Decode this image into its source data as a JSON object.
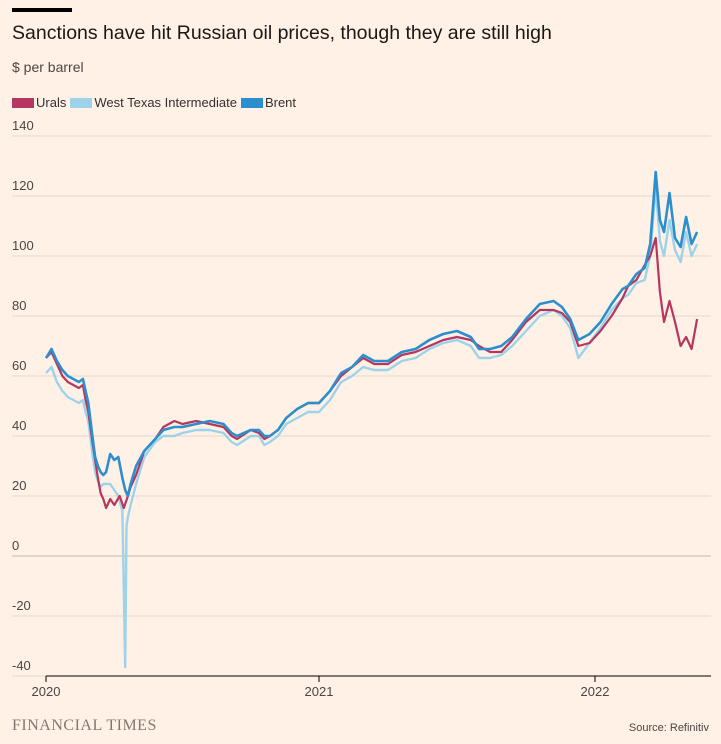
{
  "chart_data": {
    "type": "line",
    "title": "Sanctions have hit Russian oil prices, though they are still high",
    "subtitle": "$ per barrel",
    "source": "Source: Refinitiv",
    "publisher": "FINANCIAL TIMES",
    "y_ticks": [
      140,
      120,
      100,
      80,
      60,
      40,
      20,
      0,
      -20,
      -40
    ],
    "x_ticks": [
      {
        "label": "2020",
        "t": 0
      },
      {
        "label": "2021",
        "t": 1
      },
      {
        "label": "2022",
        "t": 2
      }
    ],
    "ylim": [
      -40,
      140
    ],
    "xlim": [
      0,
      2.4
    ],
    "legend_position": "top-left",
    "series": [
      {
        "name": "Urals",
        "color": "#b5375f",
        "points": [
          [
            0,
            66
          ],
          [
            0.02,
            68
          ],
          [
            0.04,
            64
          ],
          [
            0.06,
            60
          ],
          [
            0.08,
            58
          ],
          [
            0.1,
            57
          ],
          [
            0.12,
            56
          ],
          [
            0.135,
            57
          ],
          [
            0.145,
            52
          ],
          [
            0.155,
            48
          ],
          [
            0.17,
            38
          ],
          [
            0.18,
            32
          ],
          [
            0.19,
            26
          ],
          [
            0.2,
            21
          ],
          [
            0.21,
            19
          ],
          [
            0.22,
            16
          ],
          [
            0.235,
            19
          ],
          [
            0.25,
            17
          ],
          [
            0.27,
            20
          ],
          [
            0.285,
            16
          ],
          [
            0.3,
            20
          ],
          [
            0.31,
            23
          ],
          [
            0.33,
            27
          ],
          [
            0.36,
            35
          ],
          [
            0.4,
            39
          ],
          [
            0.43,
            43
          ],
          [
            0.47,
            45
          ],
          [
            0.5,
            44
          ],
          [
            0.55,
            45
          ],
          [
            0.6,
            44
          ],
          [
            0.65,
            43
          ],
          [
            0.68,
            40
          ],
          [
            0.7,
            39
          ],
          [
            0.75,
            42
          ],
          [
            0.78,
            41
          ],
          [
            0.8,
            39
          ],
          [
            0.82,
            40
          ],
          [
            0.85,
            42
          ],
          [
            0.88,
            46
          ],
          [
            0.92,
            49
          ],
          [
            0.96,
            51
          ],
          [
            1.0,
            51
          ],
          [
            1.04,
            55
          ],
          [
            1.08,
            60
          ],
          [
            1.12,
            63
          ],
          [
            1.16,
            66
          ],
          [
            1.2,
            64
          ],
          [
            1.25,
            64
          ],
          [
            1.3,
            67
          ],
          [
            1.35,
            68
          ],
          [
            1.4,
            70
          ],
          [
            1.45,
            72
          ],
          [
            1.5,
            73
          ],
          [
            1.55,
            72
          ],
          [
            1.58,
            70
          ],
          [
            1.62,
            68
          ],
          [
            1.66,
            68
          ],
          [
            1.7,
            72
          ],
          [
            1.75,
            78
          ],
          [
            1.8,
            82
          ],
          [
            1.85,
            82
          ],
          [
            1.88,
            81
          ],
          [
            1.91,
            78
          ],
          [
            1.94,
            70
          ],
          [
            1.98,
            71
          ],
          [
            2.02,
            75
          ],
          [
            2.06,
            80
          ],
          [
            2.1,
            86
          ],
          [
            2.12,
            90
          ],
          [
            2.15,
            92
          ],
          [
            2.18,
            97
          ],
          [
            2.2,
            100
          ],
          [
            2.22,
            106
          ],
          [
            2.235,
            88
          ],
          [
            2.25,
            78
          ],
          [
            2.27,
            85
          ],
          [
            2.29,
            78
          ],
          [
            2.31,
            70
          ],
          [
            2.33,
            73
          ],
          [
            2.35,
            69
          ],
          [
            2.37,
            79
          ]
        ]
      },
      {
        "name": "West Texas Intermediate",
        "color": "#9dd3ea",
        "points": [
          [
            0,
            61
          ],
          [
            0.02,
            63
          ],
          [
            0.04,
            58
          ],
          [
            0.06,
            55
          ],
          [
            0.08,
            53
          ],
          [
            0.1,
            52
          ],
          [
            0.12,
            51
          ],
          [
            0.135,
            52
          ],
          [
            0.145,
            48
          ],
          [
            0.155,
            45
          ],
          [
            0.17,
            34
          ],
          [
            0.18,
            28
          ],
          [
            0.19,
            25
          ],
          [
            0.2,
            23
          ],
          [
            0.21,
            24
          ],
          [
            0.22,
            24
          ],
          [
            0.235,
            24
          ],
          [
            0.25,
            22
          ],
          [
            0.265,
            20
          ],
          [
            0.28,
            15
          ],
          [
            0.29,
            -37
          ],
          [
            0.295,
            10
          ],
          [
            0.3,
            13
          ],
          [
            0.31,
            17
          ],
          [
            0.33,
            24
          ],
          [
            0.36,
            33
          ],
          [
            0.4,
            38
          ],
          [
            0.43,
            40
          ],
          [
            0.47,
            40
          ],
          [
            0.5,
            41
          ],
          [
            0.55,
            42
          ],
          [
            0.6,
            42
          ],
          [
            0.65,
            41
          ],
          [
            0.68,
            38
          ],
          [
            0.7,
            37
          ],
          [
            0.75,
            40
          ],
          [
            0.78,
            40
          ],
          [
            0.8,
            37
          ],
          [
            0.82,
            38
          ],
          [
            0.85,
            40
          ],
          [
            0.88,
            44
          ],
          [
            0.92,
            46
          ],
          [
            0.96,
            48
          ],
          [
            1.0,
            48
          ],
          [
            1.04,
            52
          ],
          [
            1.08,
            58
          ],
          [
            1.12,
            60
          ],
          [
            1.16,
            63
          ],
          [
            1.2,
            62
          ],
          [
            1.25,
            62
          ],
          [
            1.3,
            65
          ],
          [
            1.35,
            66
          ],
          [
            1.4,
            69
          ],
          [
            1.45,
            71
          ],
          [
            1.5,
            72
          ],
          [
            1.55,
            70
          ],
          [
            1.58,
            66
          ],
          [
            1.62,
            66
          ],
          [
            1.66,
            67
          ],
          [
            1.7,
            70
          ],
          [
            1.75,
            75
          ],
          [
            1.8,
            80
          ],
          [
            1.85,
            82
          ],
          [
            1.88,
            80
          ],
          [
            1.91,
            76
          ],
          [
            1.94,
            66
          ],
          [
            1.98,
            71
          ],
          [
            2.02,
            76
          ],
          [
            2.06,
            82
          ],
          [
            2.1,
            86
          ],
          [
            2.12,
            87
          ],
          [
            2.15,
            91
          ],
          [
            2.18,
            92
          ],
          [
            2.2,
            100
          ],
          [
            2.22,
            123
          ],
          [
            2.235,
            105
          ],
          [
            2.25,
            100
          ],
          [
            2.27,
            112
          ],
          [
            2.29,
            102
          ],
          [
            2.31,
            98
          ],
          [
            2.33,
            108
          ],
          [
            2.35,
            100
          ],
          [
            2.37,
            104
          ]
        ]
      },
      {
        "name": "Brent",
        "color": "#2c8fcd",
        "points": [
          [
            0,
            66
          ],
          [
            0.02,
            69
          ],
          [
            0.04,
            65
          ],
          [
            0.06,
            62
          ],
          [
            0.08,
            60
          ],
          [
            0.1,
            59
          ],
          [
            0.12,
            58
          ],
          [
            0.135,
            59
          ],
          [
            0.145,
            55
          ],
          [
            0.155,
            51
          ],
          [
            0.17,
            40
          ],
          [
            0.18,
            33
          ],
          [
            0.19,
            30
          ],
          [
            0.2,
            28
          ],
          [
            0.21,
            27
          ],
          [
            0.22,
            28
          ],
          [
            0.235,
            34
          ],
          [
            0.25,
            32
          ],
          [
            0.265,
            33
          ],
          [
            0.28,
            26
          ],
          [
            0.29,
            22
          ],
          [
            0.3,
            20
          ],
          [
            0.31,
            24
          ],
          [
            0.33,
            30
          ],
          [
            0.36,
            35
          ],
          [
            0.4,
            39
          ],
          [
            0.43,
            42
          ],
          [
            0.47,
            43
          ],
          [
            0.5,
            43
          ],
          [
            0.55,
            44
          ],
          [
            0.6,
            45
          ],
          [
            0.65,
            44
          ],
          [
            0.68,
            41
          ],
          [
            0.7,
            40
          ],
          [
            0.75,
            42
          ],
          [
            0.78,
            42
          ],
          [
            0.8,
            40
          ],
          [
            0.82,
            40
          ],
          [
            0.85,
            42
          ],
          [
            0.88,
            46
          ],
          [
            0.92,
            49
          ],
          [
            0.96,
            51
          ],
          [
            1.0,
            51
          ],
          [
            1.04,
            55
          ],
          [
            1.08,
            61
          ],
          [
            1.12,
            63
          ],
          [
            1.16,
            67
          ],
          [
            1.2,
            65
          ],
          [
            1.25,
            65
          ],
          [
            1.3,
            68
          ],
          [
            1.35,
            69
          ],
          [
            1.4,
            72
          ],
          [
            1.45,
            74
          ],
          [
            1.5,
            75
          ],
          [
            1.55,
            73
          ],
          [
            1.58,
            69
          ],
          [
            1.62,
            69
          ],
          [
            1.66,
            70
          ],
          [
            1.7,
            73
          ],
          [
            1.75,
            79
          ],
          [
            1.8,
            84
          ],
          [
            1.85,
            85
          ],
          [
            1.88,
            83
          ],
          [
            1.91,
            79
          ],
          [
            1.94,
            72
          ],
          [
            1.98,
            74
          ],
          [
            2.02,
            78
          ],
          [
            2.06,
            84
          ],
          [
            2.1,
            89
          ],
          [
            2.12,
            90
          ],
          [
            2.15,
            94
          ],
          [
            2.18,
            96
          ],
          [
            2.2,
            104
          ],
          [
            2.22,
            128
          ],
          [
            2.235,
            112
          ],
          [
            2.25,
            108
          ],
          [
            2.27,
            121
          ],
          [
            2.29,
            106
          ],
          [
            2.31,
            103
          ],
          [
            2.33,
            113
          ],
          [
            2.35,
            104
          ],
          [
            2.37,
            108
          ]
        ]
      }
    ]
  }
}
